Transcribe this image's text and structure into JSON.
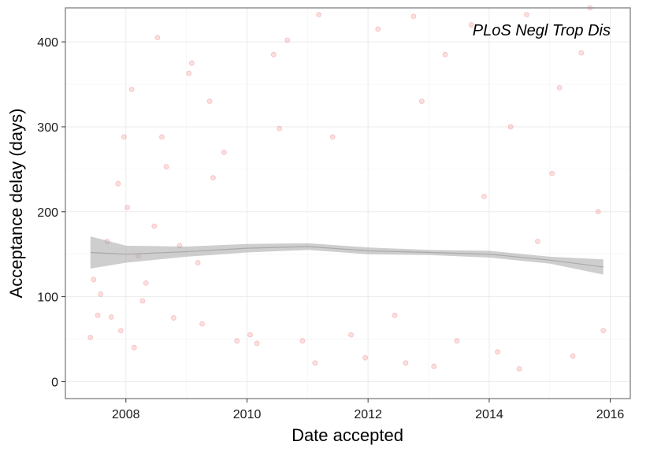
{
  "chart_data": {
    "type": "scatter",
    "annotation": "PLoS Negl Trop Dis",
    "xlabel": "Date accepted",
    "ylabel": "Acceptance delay (days)",
    "x_axis_kind": "date",
    "xlim": [
      "2007-01-01",
      "2016-05-01"
    ],
    "ylim": [
      -20,
      440
    ],
    "x_ticks": [
      {
        "value": "2008-01-01",
        "label": "2008"
      },
      {
        "value": "2010-01-01",
        "label": "2010"
      },
      {
        "value": "2012-01-01",
        "label": "2012"
      },
      {
        "value": "2014-01-01",
        "label": "2014"
      },
      {
        "value": "2016-01-01",
        "label": "2016"
      }
    ],
    "y_ticks": [
      {
        "value": 0,
        "label": "0"
      },
      {
        "value": 100,
        "label": "100"
      },
      {
        "value": 200,
        "label": "200"
      },
      {
        "value": 300,
        "label": "300"
      },
      {
        "value": 400,
        "label": "400"
      }
    ],
    "grid": true,
    "point_color": "#e41a1c",
    "point_opacity": 0.14,
    "smooth_color": "#a6a6a6",
    "points": [
      {
        "x": "2007-06-01",
        "y": 52
      },
      {
        "x": "2007-06-20",
        "y": 120
      },
      {
        "x": "2007-07-15",
        "y": 78
      },
      {
        "x": "2007-08-01",
        "y": 103
      },
      {
        "x": "2007-09-10",
        "y": 165
      },
      {
        "x": "2007-10-05",
        "y": 76
      },
      {
        "x": "2007-11-15",
        "y": 233
      },
      {
        "x": "2007-12-01",
        "y": 60
      },
      {
        "x": "2007-12-20",
        "y": 288
      },
      {
        "x": "2008-01-10",
        "y": 205
      },
      {
        "x": "2008-02-05",
        "y": 344
      },
      {
        "x": "2008-02-20",
        "y": 40
      },
      {
        "x": "2008-03-15",
        "y": 148
      },
      {
        "x": "2008-04-10",
        "y": 95
      },
      {
        "x": "2008-05-01",
        "y": 116
      },
      {
        "x": "2008-06-20",
        "y": 183
      },
      {
        "x": "2008-07-10",
        "y": 405
      },
      {
        "x": "2008-08-05",
        "y": 288
      },
      {
        "x": "2008-09-01",
        "y": 253
      },
      {
        "x": "2008-10-15",
        "y": 75
      },
      {
        "x": "2008-11-20",
        "y": 160
      },
      {
        "x": "2009-01-15",
        "y": 363
      },
      {
        "x": "2009-02-01",
        "y": 375
      },
      {
        "x": "2009-03-10",
        "y": 140
      },
      {
        "x": "2009-04-05",
        "y": 68
      },
      {
        "x": "2009-05-20",
        "y": 330
      },
      {
        "x": "2009-06-10",
        "y": 240
      },
      {
        "x": "2009-08-15",
        "y": 270
      },
      {
        "x": "2009-11-01",
        "y": 48
      },
      {
        "x": "2010-01-20",
        "y": 55
      },
      {
        "x": "2010-03-01",
        "y": 45
      },
      {
        "x": "2010-06-10",
        "y": 385
      },
      {
        "x": "2010-07-15",
        "y": 298
      },
      {
        "x": "2010-09-01",
        "y": 402
      },
      {
        "x": "2010-12-01",
        "y": 48
      },
      {
        "x": "2011-02-15",
        "y": 22
      },
      {
        "x": "2011-03-10",
        "y": 432
      },
      {
        "x": "2011-06-01",
        "y": 288
      },
      {
        "x": "2011-09-20",
        "y": 55
      },
      {
        "x": "2011-12-15",
        "y": 28
      },
      {
        "x": "2012-03-01",
        "y": 415
      },
      {
        "x": "2012-06-10",
        "y": 78
      },
      {
        "x": "2012-08-15",
        "y": 22
      },
      {
        "x": "2012-10-01",
        "y": 430
      },
      {
        "x": "2012-11-20",
        "y": 330
      },
      {
        "x": "2013-02-01",
        "y": 18
      },
      {
        "x": "2013-04-10",
        "y": 385
      },
      {
        "x": "2013-06-20",
        "y": 48
      },
      {
        "x": "2013-09-15",
        "y": 420
      },
      {
        "x": "2013-12-01",
        "y": 218
      },
      {
        "x": "2014-02-20",
        "y": 35
      },
      {
        "x": "2014-05-10",
        "y": 300
      },
      {
        "x": "2014-07-01",
        "y": 15
      },
      {
        "x": "2014-08-15",
        "y": 432
      },
      {
        "x": "2014-10-20",
        "y": 165
      },
      {
        "x": "2015-01-15",
        "y": 245
      },
      {
        "x": "2015-03-01",
        "y": 346
      },
      {
        "x": "2015-05-20",
        "y": 30
      },
      {
        "x": "2015-07-10",
        "y": 387
      },
      {
        "x": "2015-09-01",
        "y": 440
      },
      {
        "x": "2015-10-20",
        "y": 200
      },
      {
        "x": "2015-11-20",
        "y": 60
      }
    ],
    "smooth": {
      "x": [
        "2007-06-01",
        "2008-01-01",
        "2009-01-01",
        "2010-01-01",
        "2011-01-01",
        "2012-01-01",
        "2013-01-01",
        "2014-01-01",
        "2015-01-01",
        "2015-11-20"
      ],
      "y": [
        152,
        150,
        153,
        157,
        159,
        154,
        152,
        150,
        143,
        135
      ],
      "ci_lower": [
        133,
        140,
        147,
        152,
        155,
        150,
        149,
        146,
        139,
        126
      ],
      "ci_upper": [
        171,
        160,
        159,
        162,
        163,
        158,
        155,
        154,
        147,
        144
      ]
    }
  }
}
